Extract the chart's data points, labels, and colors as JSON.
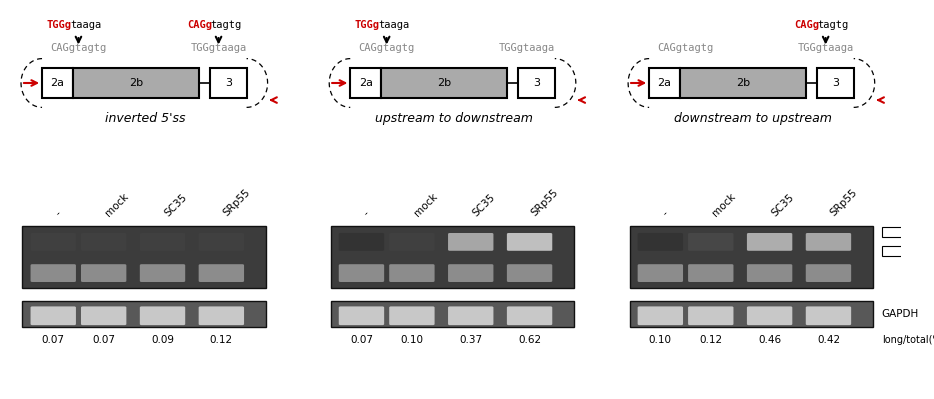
{
  "panels": [
    {
      "title": "inverted 5'ss",
      "top_left_seq": [
        [
          "TGGg",
          "red"
        ],
        [
          "taaga",
          "black"
        ]
      ],
      "top_right_seq": [
        [
          "CAGg",
          "red"
        ],
        [
          "tagtg",
          "black"
        ]
      ],
      "bot_left_seq": "CAGgtagtg",
      "bot_right_seq": "TGGgtaaga",
      "has_top_left_arrow": true,
      "has_top_right_arrow": true,
      "values": [
        "0.07",
        "0.07",
        "0.09",
        "0.12"
      ]
    },
    {
      "title": "upstream to downstream",
      "top_left_seq": [
        [
          "TGGg",
          "red"
        ],
        [
          "taaga",
          "black"
        ]
      ],
      "top_right_seq": [],
      "bot_left_seq": "CAGgtagtg",
      "bot_right_seq": "TGGgtaaga",
      "has_top_left_arrow": true,
      "has_top_right_arrow": false,
      "values": [
        "0.07",
        "0.10",
        "0.37",
        "0.62"
      ]
    },
    {
      "title": "downstream to upstream",
      "top_left_seq": [],
      "top_right_seq": [
        [
          "CAGg",
          "red"
        ],
        [
          "tagtg",
          "black"
        ]
      ],
      "bot_left_seq": "CAGgtagtg",
      "bot_right_seq": "TGGgtaaga",
      "has_top_left_arrow": false,
      "has_top_right_arrow": true,
      "values": [
        "0.10",
        "0.12",
        "0.46",
        "0.42"
      ]
    }
  ],
  "col_labels": [
    "-",
    "mock",
    "SC35",
    "SRp55"
  ],
  "bg_color": "#ffffff",
  "red_color": "#cc0000",
  "box_gray": "#aaaaaa",
  "gel_bg_color": "#505050",
  "gapdh_bg_color": "#686868"
}
